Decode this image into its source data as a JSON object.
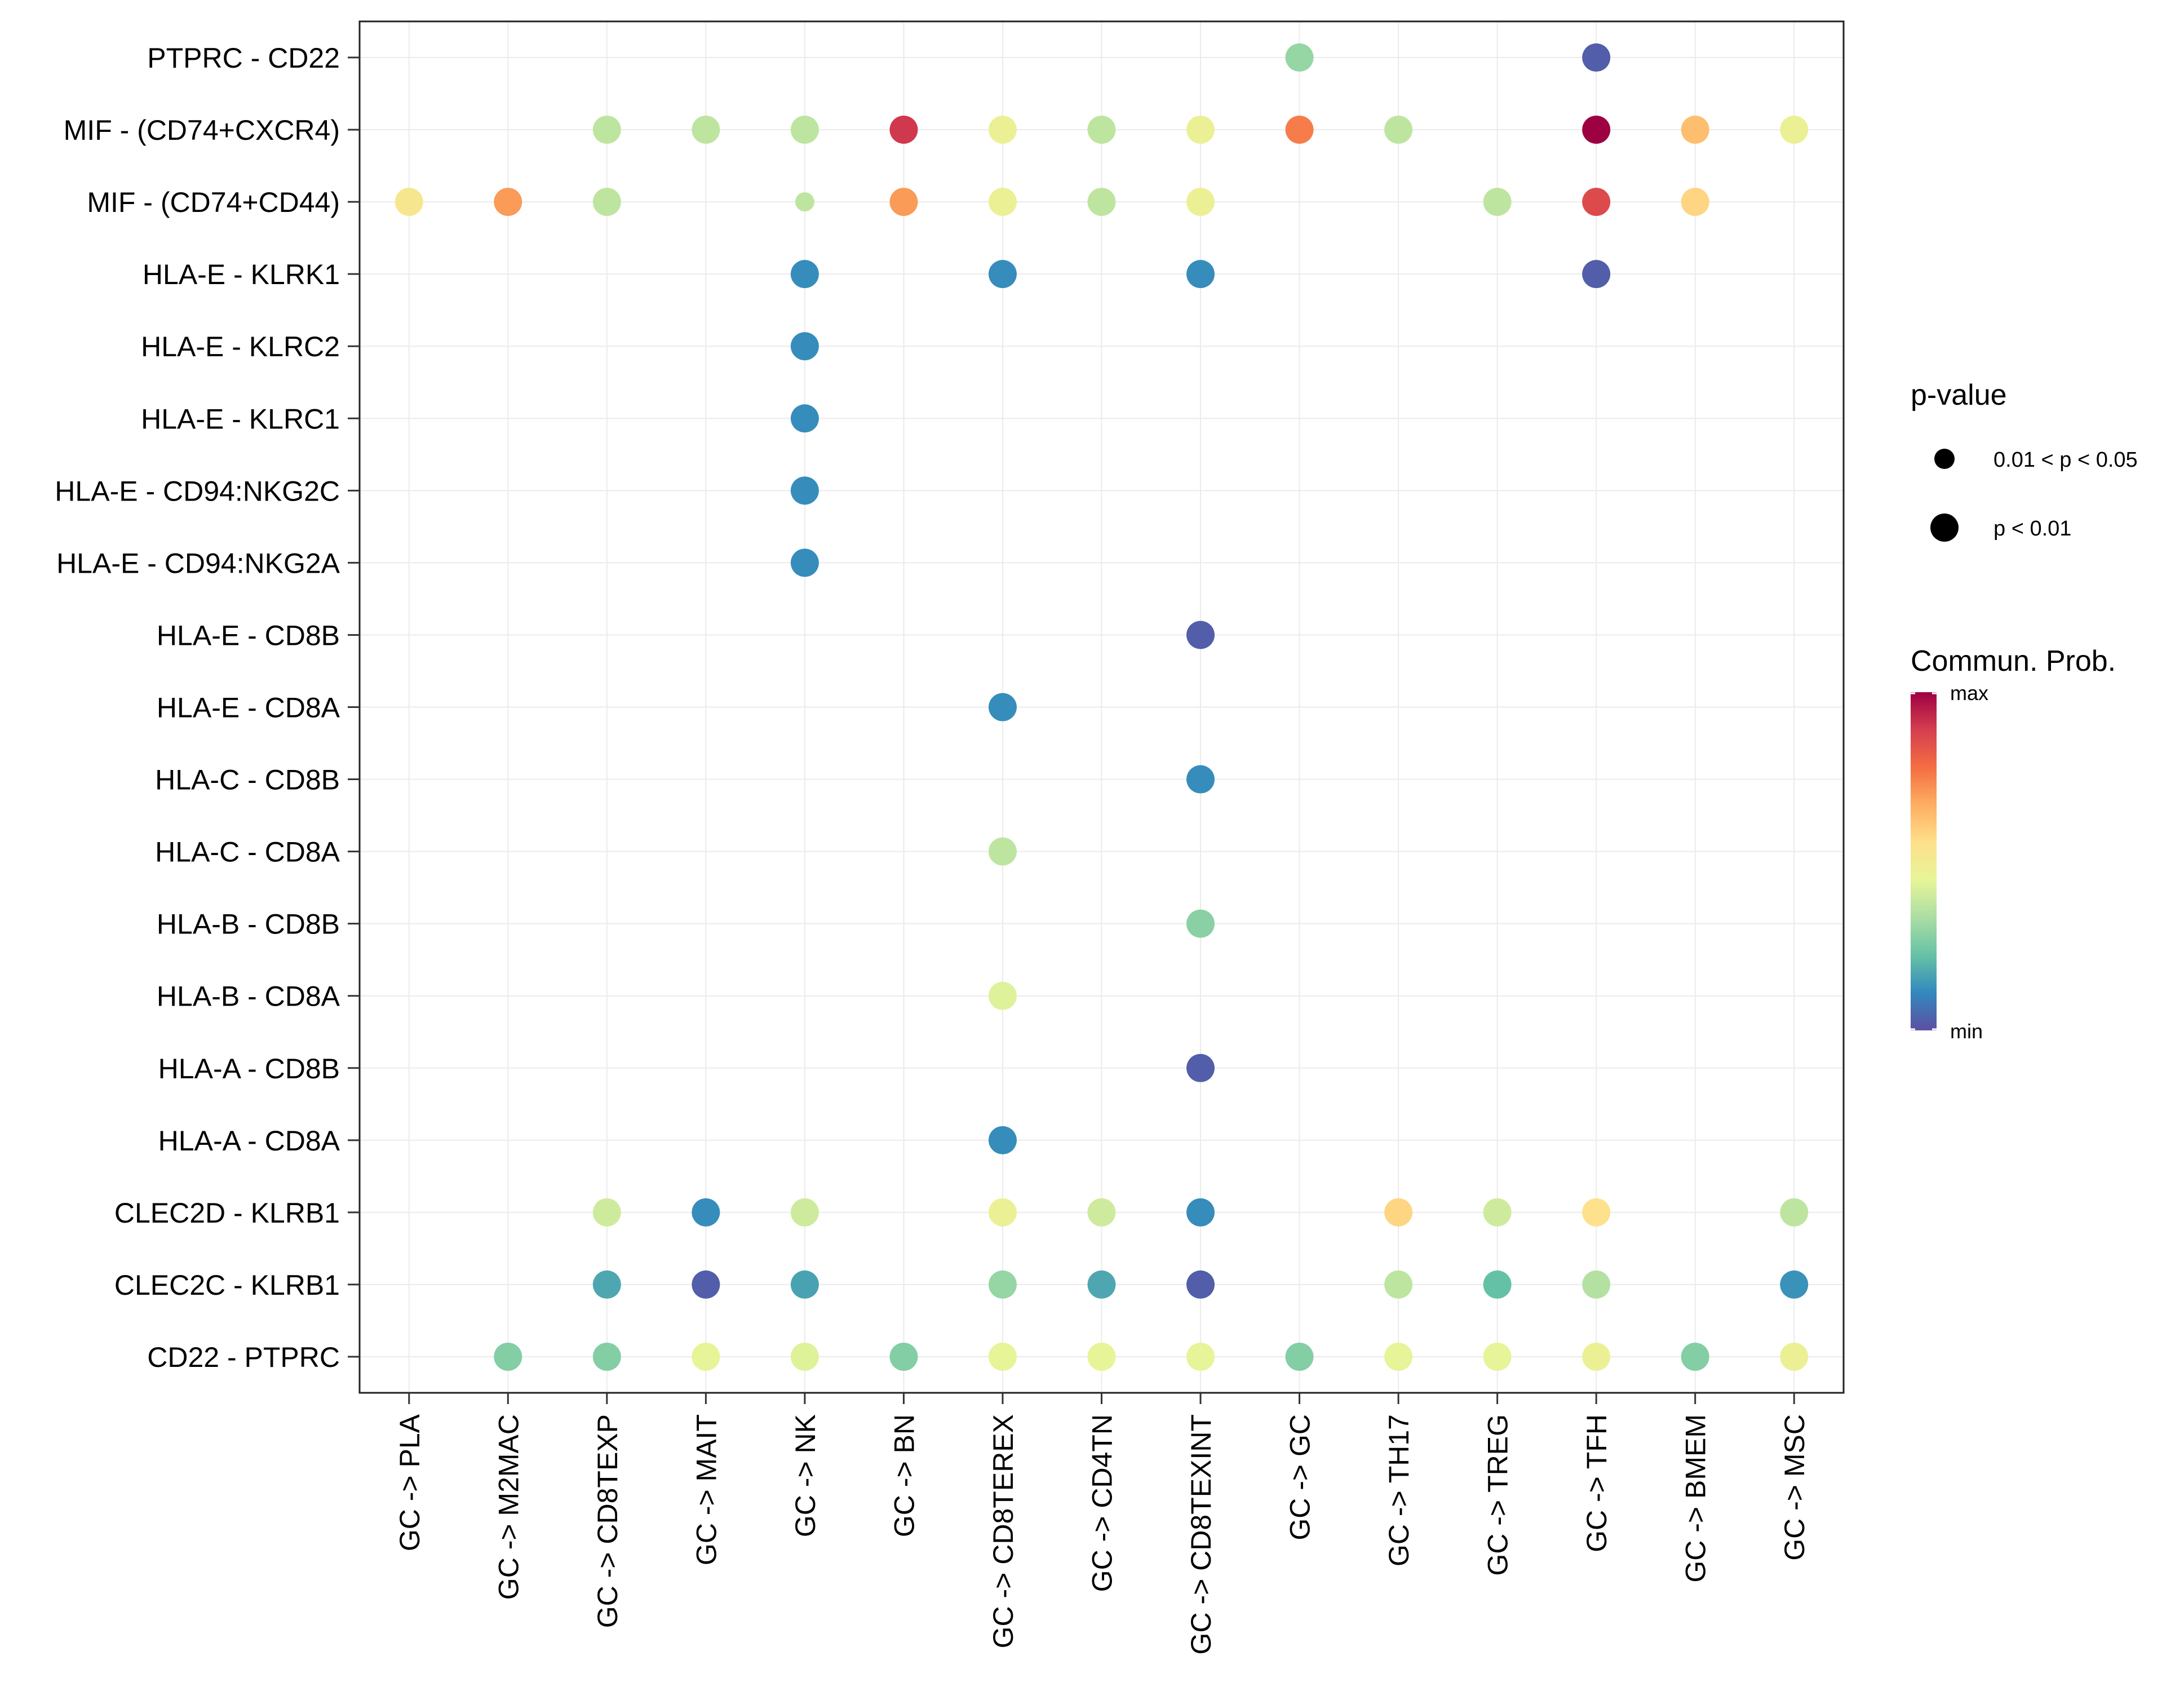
{
  "chart_data": {
    "type": "scatter",
    "title": "",
    "xlabel": "",
    "ylabel": "",
    "grid": true,
    "categories_x": [
      "GC -> PLA",
      "GC -> M2MAC",
      "GC -> CD8TEXP",
      "GC -> MAIT",
      "GC -> NK",
      "GC -> BN",
      "GC -> CD8TEREX",
      "GC -> CD4TN",
      "GC -> CD8TEXINT",
      "GC -> GC",
      "GC -> TH17",
      "GC -> TREG",
      "GC -> TFH",
      "GC -> BMEM",
      "GC -> MSC"
    ],
    "categories_y": [
      "PTPRC - CD22",
      "MIF - (CD74+CXCR4)",
      "MIF - (CD74+CD44)",
      "HLA-E - KLRK1",
      "HLA-E - KLRC2",
      "HLA-E - KLRC1",
      "HLA-E - CD94:NKG2C",
      "HLA-E - CD94:NKG2A",
      "HLA-E - CD8B",
      "HLA-E - CD8A",
      "HLA-C - CD8B",
      "HLA-C - CD8A",
      "HLA-B - CD8B",
      "HLA-B - CD8A",
      "HLA-A - CD8B",
      "HLA-A - CD8A",
      "CLEC2D - KLRB1",
      "CLEC2C - KLRB1",
      "CD22 - PTPRC"
    ],
    "points": [
      {
        "x": "GC -> GC",
        "y": "PTPRC - CD22",
        "prob": 0.3,
        "pval": "p < 0.01"
      },
      {
        "x": "GC -> TFH",
        "y": "PTPRC - CD22",
        "prob": 0.03,
        "pval": "p < 0.01"
      },
      {
        "x": "GC -> CD8TEXP",
        "y": "MIF - (CD74+CXCR4)",
        "prob": 0.37,
        "pval": "p < 0.01"
      },
      {
        "x": "GC -> MAIT",
        "y": "MIF - (CD74+CXCR4)",
        "prob": 0.37,
        "pval": "p < 0.01"
      },
      {
        "x": "GC -> NK",
        "y": "MIF - (CD74+CXCR4)",
        "prob": 0.37,
        "pval": "p < 0.01"
      },
      {
        "x": "GC -> BN",
        "y": "MIF - (CD74+CXCR4)",
        "prob": 0.9,
        "pval": "p < 0.01"
      },
      {
        "x": "GC -> CD8TEREX",
        "y": "MIF - (CD74+CXCR4)",
        "prob": 0.47,
        "pval": "p < 0.01"
      },
      {
        "x": "GC -> CD4TN",
        "y": "MIF - (CD74+CXCR4)",
        "prob": 0.37,
        "pval": "p < 0.01"
      },
      {
        "x": "GC -> CD8TEXINT",
        "y": "MIF - (CD74+CXCR4)",
        "prob": 0.47,
        "pval": "p < 0.01"
      },
      {
        "x": "GC -> GC",
        "y": "MIF - (CD74+CXCR4)",
        "prob": 0.75,
        "pval": "p < 0.01"
      },
      {
        "x": "GC -> TH17",
        "y": "MIF - (CD74+CXCR4)",
        "prob": 0.37,
        "pval": "p < 0.01"
      },
      {
        "x": "GC -> TFH",
        "y": "MIF - (CD74+CXCR4)",
        "prob": 1.0,
        "pval": "p < 0.01"
      },
      {
        "x": "GC -> BMEM",
        "y": "MIF - (CD74+CXCR4)",
        "prob": 0.63,
        "pval": "p < 0.01"
      },
      {
        "x": "GC -> MSC",
        "y": "MIF - (CD74+CXCR4)",
        "prob": 0.47,
        "pval": "p < 0.01"
      },
      {
        "x": "GC -> PLA",
        "y": "MIF - (CD74+CD44)",
        "prob": 0.52,
        "pval": "p < 0.01"
      },
      {
        "x": "GC -> M2MAC",
        "y": "MIF - (CD74+CD44)",
        "prob": 0.7,
        "pval": "p < 0.01"
      },
      {
        "x": "GC -> CD8TEXP",
        "y": "MIF - (CD74+CD44)",
        "prob": 0.37,
        "pval": "p < 0.01"
      },
      {
        "x": "GC -> NK",
        "y": "MIF - (CD74+CD44)",
        "prob": 0.37,
        "pval": "0.01 < p < 0.05"
      },
      {
        "x": "GC -> BN",
        "y": "MIF - (CD74+CD44)",
        "prob": 0.7,
        "pval": "p < 0.01"
      },
      {
        "x": "GC -> CD8TEREX",
        "y": "MIF - (CD74+CD44)",
        "prob": 0.47,
        "pval": "p < 0.01"
      },
      {
        "x": "GC -> CD4TN",
        "y": "MIF - (CD74+CD44)",
        "prob": 0.37,
        "pval": "p < 0.01"
      },
      {
        "x": "GC -> CD8TEXINT",
        "y": "MIF - (CD74+CD44)",
        "prob": 0.47,
        "pval": "p < 0.01"
      },
      {
        "x": "GC -> TREG",
        "y": "MIF - (CD74+CD44)",
        "prob": 0.37,
        "pval": "p < 0.01"
      },
      {
        "x": "GC -> TFH",
        "y": "MIF - (CD74+CD44)",
        "prob": 0.86,
        "pval": "p < 0.01"
      },
      {
        "x": "GC -> BMEM",
        "y": "MIF - (CD74+CD44)",
        "prob": 0.58,
        "pval": "p < 0.01"
      },
      {
        "x": "GC -> NK",
        "y": "HLA-E - KLRK1",
        "prob": 0.12,
        "pval": "p < 0.01"
      },
      {
        "x": "GC -> CD8TEREX",
        "y": "HLA-E - KLRK1",
        "prob": 0.12,
        "pval": "p < 0.01"
      },
      {
        "x": "GC -> CD8TEXINT",
        "y": "HLA-E - KLRK1",
        "prob": 0.12,
        "pval": "p < 0.01"
      },
      {
        "x": "GC -> TFH",
        "y": "HLA-E - KLRK1",
        "prob": 0.03,
        "pval": "p < 0.01"
      },
      {
        "x": "GC -> NK",
        "y": "HLA-E - KLRC2",
        "prob": 0.12,
        "pval": "p < 0.01"
      },
      {
        "x": "GC -> NK",
        "y": "HLA-E - KLRC1",
        "prob": 0.12,
        "pval": "p < 0.01"
      },
      {
        "x": "GC -> NK",
        "y": "HLA-E - CD94:NKG2C",
        "prob": 0.12,
        "pval": "p < 0.01"
      },
      {
        "x": "GC -> NK",
        "y": "HLA-E - CD94:NKG2A",
        "prob": 0.12,
        "pval": "p < 0.01"
      },
      {
        "x": "GC -> CD8TEXINT",
        "y": "HLA-E - CD8B",
        "prob": 0.03,
        "pval": "p < 0.01"
      },
      {
        "x": "GC -> CD8TEREX",
        "y": "HLA-E - CD8A",
        "prob": 0.12,
        "pval": "p < 0.01"
      },
      {
        "x": "GC -> CD8TEXINT",
        "y": "HLA-C - CD8B",
        "prob": 0.12,
        "pval": "p < 0.01"
      },
      {
        "x": "GC -> CD8TEREX",
        "y": "HLA-C - CD8A",
        "prob": 0.37,
        "pval": "p < 0.01"
      },
      {
        "x": "GC -> CD8TEXINT",
        "y": "HLA-B - CD8B",
        "prob": 0.28,
        "pval": "p < 0.01"
      },
      {
        "x": "GC -> CD8TEREX",
        "y": "HLA-B - CD8A",
        "prob": 0.43,
        "pval": "p < 0.01"
      },
      {
        "x": "GC -> CD8TEXINT",
        "y": "HLA-A - CD8B",
        "prob": 0.03,
        "pval": "p < 0.01"
      },
      {
        "x": "GC -> CD8TEREX",
        "y": "HLA-A - CD8A",
        "prob": 0.12,
        "pval": "p < 0.01"
      },
      {
        "x": "GC -> CD8TEXP",
        "y": "CLEC2D - KLRB1",
        "prob": 0.4,
        "pval": "p < 0.01"
      },
      {
        "x": "GC -> MAIT",
        "y": "CLEC2D - KLRB1",
        "prob": 0.12,
        "pval": "p < 0.01"
      },
      {
        "x": "GC -> NK",
        "y": "CLEC2D - KLRB1",
        "prob": 0.4,
        "pval": "p < 0.01"
      },
      {
        "x": "GC -> CD8TEREX",
        "y": "CLEC2D - KLRB1",
        "prob": 0.47,
        "pval": "p < 0.01"
      },
      {
        "x": "GC -> CD4TN",
        "y": "CLEC2D - KLRB1",
        "prob": 0.4,
        "pval": "p < 0.01"
      },
      {
        "x": "GC -> CD8TEXINT",
        "y": "CLEC2D - KLRB1",
        "prob": 0.12,
        "pval": "p < 0.01"
      },
      {
        "x": "GC -> TH17",
        "y": "CLEC2D - KLRB1",
        "prob": 0.58,
        "pval": "p < 0.01"
      },
      {
        "x": "GC -> TREG",
        "y": "CLEC2D - KLRB1",
        "prob": 0.4,
        "pval": "p < 0.01"
      },
      {
        "x": "GC -> TFH",
        "y": "CLEC2D - KLRB1",
        "prob": 0.55,
        "pval": "p < 0.01"
      },
      {
        "x": "GC -> MSC",
        "y": "CLEC2D - KLRB1",
        "prob": 0.37,
        "pval": "p < 0.01"
      },
      {
        "x": "GC -> CD8TEXP",
        "y": "CLEC2C - KLRB1",
        "prob": 0.17,
        "pval": "p < 0.01"
      },
      {
        "x": "GC -> MAIT",
        "y": "CLEC2C - KLRB1",
        "prob": 0.03,
        "pval": "p < 0.01"
      },
      {
        "x": "GC -> NK",
        "y": "CLEC2C - KLRB1",
        "prob": 0.16,
        "pval": "p < 0.01"
      },
      {
        "x": "GC -> CD8TEREX",
        "y": "CLEC2C - KLRB1",
        "prob": 0.3,
        "pval": "p < 0.01"
      },
      {
        "x": "GC -> CD4TN",
        "y": "CLEC2C - KLRB1",
        "prob": 0.17,
        "pval": "p < 0.01"
      },
      {
        "x": "GC -> CD8TEXINT",
        "y": "CLEC2C - KLRB1",
        "prob": 0.03,
        "pval": "p < 0.01"
      },
      {
        "x": "GC -> TH17",
        "y": "CLEC2C - KLRB1",
        "prob": 0.37,
        "pval": "p < 0.01"
      },
      {
        "x": "GC -> TREG",
        "y": "CLEC2C - KLRB1",
        "prob": 0.22,
        "pval": "p < 0.01"
      },
      {
        "x": "GC -> TFH",
        "y": "CLEC2C - KLRB1",
        "prob": 0.35,
        "pval": "p < 0.01"
      },
      {
        "x": "GC -> MSC",
        "y": "CLEC2C - KLRB1",
        "prob": 0.13,
        "pval": "p < 0.01"
      },
      {
        "x": "GC -> M2MAC",
        "y": "CD22 - PTPRC",
        "prob": 0.27,
        "pval": "p < 0.01"
      },
      {
        "x": "GC -> CD8TEXP",
        "y": "CD22 - PTPRC",
        "prob": 0.27,
        "pval": "p < 0.01"
      },
      {
        "x": "GC -> MAIT",
        "y": "CD22 - PTPRC",
        "prob": 0.45,
        "pval": "p < 0.01"
      },
      {
        "x": "GC -> NK",
        "y": "CD22 - PTPRC",
        "prob": 0.43,
        "pval": "p < 0.01"
      },
      {
        "x": "GC -> BN",
        "y": "CD22 - PTPRC",
        "prob": 0.27,
        "pval": "p < 0.01"
      },
      {
        "x": "GC -> CD8TEREX",
        "y": "CD22 - PTPRC",
        "prob": 0.45,
        "pval": "p < 0.01"
      },
      {
        "x": "GC -> CD4TN",
        "y": "CD22 - PTPRC",
        "prob": 0.45,
        "pval": "p < 0.01"
      },
      {
        "x": "GC -> CD8TEXINT",
        "y": "CD22 - PTPRC",
        "prob": 0.45,
        "pval": "p < 0.01"
      },
      {
        "x": "GC -> GC",
        "y": "CD22 - PTPRC",
        "prob": 0.27,
        "pval": "p < 0.01"
      },
      {
        "x": "GC -> TH17",
        "y": "CD22 - PTPRC",
        "prob": 0.45,
        "pval": "p < 0.01"
      },
      {
        "x": "GC -> TREG",
        "y": "CD22 - PTPRC",
        "prob": 0.45,
        "pval": "p < 0.01"
      },
      {
        "x": "GC -> TFH",
        "y": "CD22 - PTPRC",
        "prob": 0.47,
        "pval": "p < 0.01"
      },
      {
        "x": "GC -> BMEM",
        "y": "CD22 - PTPRC",
        "prob": 0.27,
        "pval": "p < 0.01"
      },
      {
        "x": "GC -> MSC",
        "y": "CD22 - PTPRC",
        "prob": 0.47,
        "pval": "p < 0.01"
      }
    ],
    "legend_size": {
      "title": "p-value",
      "entries": [
        "0.01 < p < 0.05",
        "p < 0.01"
      ],
      "placement": "right"
    },
    "legend_color": {
      "title": "Commun. Prob.",
      "max_label": "max",
      "min_label": "min",
      "placement": "right",
      "colormap": [
        "#5E4FA2",
        "#3288BD",
        "#66C2A5",
        "#ABDDA4",
        "#E6F598",
        "#FEE08B",
        "#FDAE61",
        "#F46D43",
        "#D53E4F",
        "#9E0142"
      ]
    }
  }
}
